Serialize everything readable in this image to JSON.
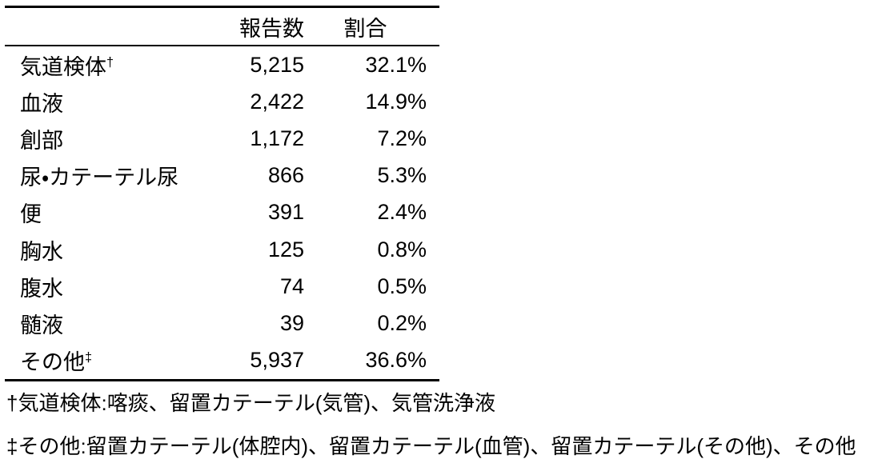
{
  "table": {
    "headers": {
      "label": "",
      "count": "報告数",
      "percent": "割合"
    },
    "rows": [
      {
        "label": "気道検体",
        "sup": "†",
        "count": "5,215",
        "percent": "32.1%"
      },
      {
        "label": "血液",
        "sup": "",
        "count": "2,422",
        "percent": "14.9%"
      },
      {
        "label": "創部",
        "sup": "",
        "count": "1,172",
        "percent": "7.2%"
      },
      {
        "label": "尿・カテーテル尿",
        "sup": "",
        "count": "866",
        "percent": "5.3%"
      },
      {
        "label": "便",
        "sup": "",
        "count": "391",
        "percent": "2.4%"
      },
      {
        "label": "胸水",
        "sup": "",
        "count": "125",
        "percent": "0.8%"
      },
      {
        "label": "腹水",
        "sup": "",
        "count": "74",
        "percent": "0.5%"
      },
      {
        "label": "髄液",
        "sup": "",
        "count": "39",
        "percent": "0.2%"
      },
      {
        "label": "その他",
        "sup": "‡",
        "count": "5,937",
        "percent": "36.6%"
      }
    ]
  },
  "footnotes": [
    {
      "marker": "†",
      "text": "気道検体:喀痰、留置カテーテル(気管)、気管洗浄液"
    },
    {
      "marker": "‡",
      "text": "その他:留置カテーテル(体腔内)、留置カテーテル(血管)、留置カテーテル(その他)、その他"
    }
  ],
  "colors": {
    "text": "#000000",
    "background": "#ffffff",
    "rule": "#000000"
  },
  "chart_data": {
    "type": "table",
    "title": "",
    "columns": [
      "",
      "報告数",
      "割合"
    ],
    "rows": [
      [
        "気道検体†",
        5215,
        "32.1%"
      ],
      [
        "血液",
        2422,
        "14.9%"
      ],
      [
        "創部",
        1172,
        "7.2%"
      ],
      [
        "尿・カテーテル尿",
        866,
        "5.3%"
      ],
      [
        "便",
        391,
        "2.4%"
      ],
      [
        "胸水",
        125,
        "0.8%"
      ],
      [
        "腹水",
        74,
        "0.5%"
      ],
      [
        "髄液",
        39,
        "0.2%"
      ],
      [
        "その他‡",
        5937,
        "36.6%"
      ]
    ]
  }
}
